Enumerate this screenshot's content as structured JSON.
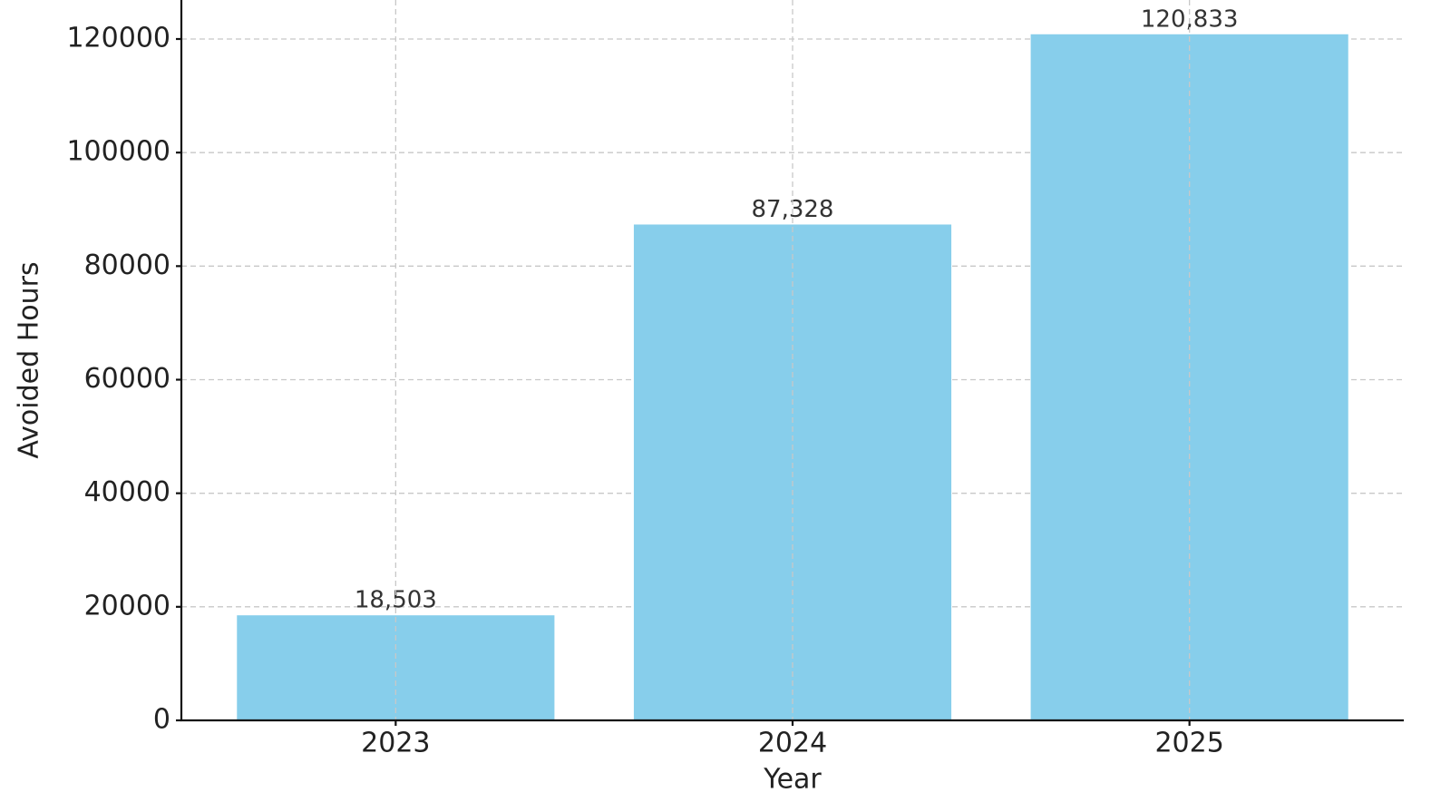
{
  "chart_data": {
    "type": "bar",
    "x_label": "Year",
    "y_label": "Avoided Hours",
    "categories": [
      "2023",
      "2024",
      "2025"
    ],
    "values": [
      18503,
      87328,
      120833
    ],
    "value_labels": [
      "18,503",
      "87,328",
      "120,833"
    ],
    "color": "#87ceeb",
    "ylim": [
      0,
      126870
    ],
    "yticks": [
      0,
      20000,
      40000,
      60000,
      80000,
      100000,
      120000
    ],
    "grid": true
  }
}
